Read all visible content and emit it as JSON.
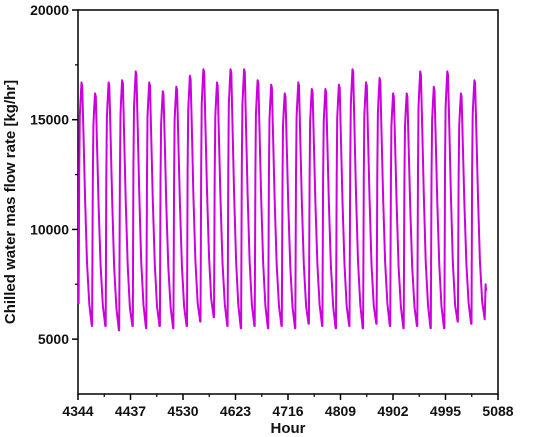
{
  "chart_data": {
    "type": "line",
    "title": "",
    "xlabel": "Hour",
    "ylabel": "Chilled water mas flow rate [kg/hr]",
    "xlim": [
      4344,
      5088
    ],
    "ylim": [
      2500,
      20000
    ],
    "x_ticks": [
      4344,
      4437,
      4530,
      4623,
      4716,
      4809,
      4902,
      4995,
      5088
    ],
    "y_ticks": [
      5000,
      10000,
      15000,
      20000
    ],
    "grid": false,
    "legend": "none",
    "series": [
      {
        "color": "#cc00dd",
        "daily_cycle": {
          "start_hour": 4345,
          "period_hours": 24,
          "days": 30,
          "end_hour": 5065
        },
        "daily_peaks": [
          16700,
          16200,
          16700,
          16800,
          17200,
          16700,
          16300,
          16500,
          17000,
          17300,
          16700,
          17300,
          17300,
          16800,
          16600,
          16200,
          16700,
          16400,
          16400,
          16600,
          17300,
          16700,
          16900,
          16200,
          16200,
          17200,
          16500,
          17200,
          16200,
          16800
        ],
        "daily_troughs": [
          5600,
          5600,
          5400,
          5600,
          5500,
          5600,
          5500,
          5600,
          5800,
          6000,
          5600,
          5500,
          5600,
          5500,
          5600,
          5500,
          5700,
          5600,
          5500,
          5600,
          5500,
          5700,
          5600,
          5500,
          5600,
          5500,
          5500,
          5800,
          5700,
          5900
        ],
        "final_value": 7200
      }
    ]
  }
}
